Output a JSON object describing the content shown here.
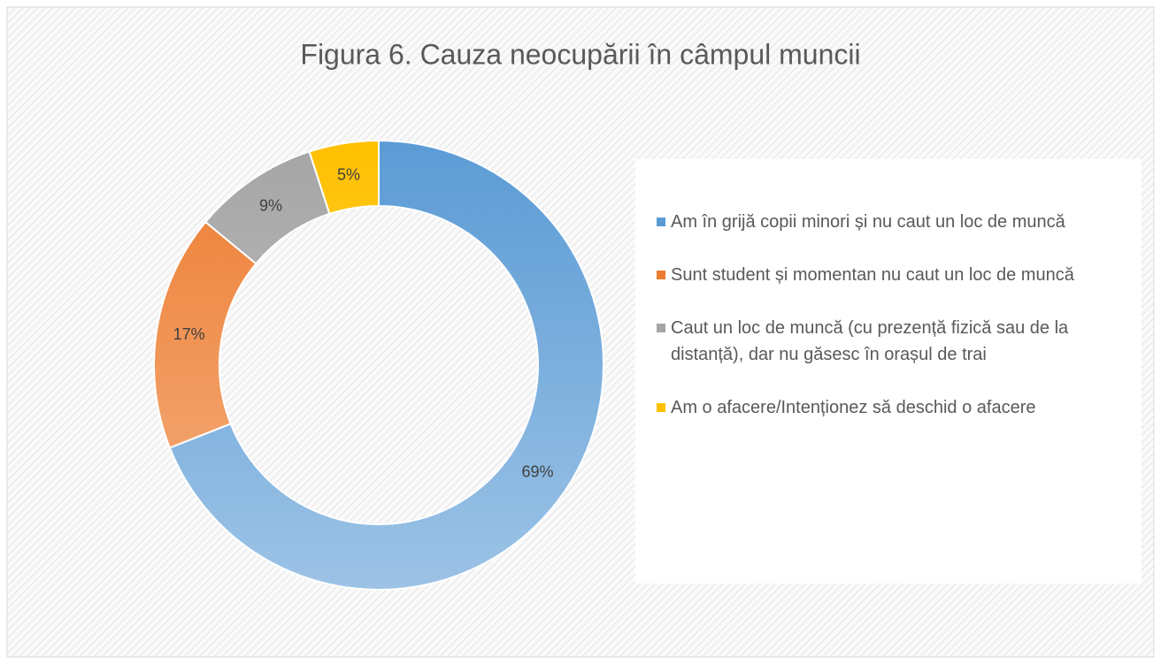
{
  "chart_data": {
    "type": "donut",
    "title": "Figura 6. Cauza neocupării în câmpul muncii",
    "categories": [
      "Am în grijă copii minori și nu caut un loc de muncă",
      "Sunt student și momentan nu caut un loc de muncă",
      "Caut un loc de muncă (cu prezență fizică sau de la distanță), dar nu găsesc în orașul de trai",
      "Am o afacere/Intenționez să deschid o afacere"
    ],
    "values": [
      69,
      17,
      9,
      5
    ],
    "value_labels": [
      "69%",
      "17%",
      "9%",
      "5%"
    ],
    "colors": [
      "#5b9bd5",
      "#ed7d31",
      "#a5a5a5",
      "#ffc000"
    ],
    "legend": "right"
  }
}
